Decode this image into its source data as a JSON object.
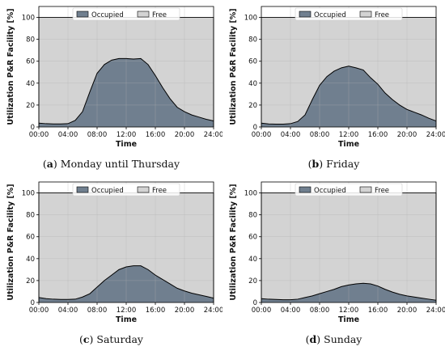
{
  "chart_data": [
    {
      "type": "area",
      "caption_letter": "a",
      "caption_text": "Monday until Thursday",
      "xlabel": "Time",
      "ylabel": "Utilization P&R Facility [%]",
      "xticks": [
        "00:00",
        "04:00",
        "08:00",
        "12:00",
        "16:00",
        "20:00",
        "24:00"
      ],
      "xlim": [
        0,
        24
      ],
      "ylim": [
        0,
        110
      ],
      "yticks": [
        0,
        20,
        40,
        60,
        80,
        100
      ],
      "legend": [
        "Occupied",
        "Free"
      ],
      "legend_position": "top-center",
      "grid": true,
      "series": [
        {
          "name": "Occupied",
          "x": [
            0,
            1,
            2,
            3,
            4,
            5,
            6,
            7,
            8,
            9,
            10,
            11,
            12,
            13,
            14,
            15,
            16,
            17,
            18,
            19,
            20,
            21,
            22,
            23,
            24
          ],
          "values": [
            3.5,
            3,
            2.8,
            2.8,
            3,
            6,
            14,
            32,
            49,
            57,
            61,
            62.5,
            62.5,
            62,
            62.5,
            57,
            47,
            36,
            26,
            18,
            14,
            11,
            9,
            7,
            5.5
          ]
        },
        {
          "name": "Free",
          "capacity": 100
        }
      ]
    },
    {
      "type": "area",
      "caption_letter": "b",
      "caption_text": "Friday",
      "xlabel": "Time",
      "ylabel": "Utilization P&R Facility [%]",
      "xticks": [
        "00:00",
        "04:00",
        "08:00",
        "12:00",
        "16:00",
        "20:00",
        "24:00"
      ],
      "xlim": [
        0,
        24
      ],
      "ylim": [
        0,
        110
      ],
      "yticks": [
        0,
        20,
        40,
        60,
        80,
        100
      ],
      "legend": [
        "Occupied",
        "Free"
      ],
      "legend_position": "top-center",
      "grid": true,
      "series": [
        {
          "name": "Occupied",
          "x": [
            0,
            1,
            2,
            3,
            4,
            5,
            6,
            7,
            8,
            9,
            10,
            11,
            12,
            13,
            14,
            15,
            16,
            17,
            18,
            19,
            20,
            21,
            22,
            23,
            24
          ],
          "values": [
            3.5,
            2.8,
            2.6,
            2.6,
            3,
            5,
            11,
            25,
            38,
            46,
            51,
            54,
            55.5,
            54,
            52,
            45,
            39,
            31,
            25,
            20,
            16,
            13.5,
            11,
            8,
            5.5
          ]
        },
        {
          "name": "Free",
          "capacity": 100
        }
      ]
    },
    {
      "type": "area",
      "caption_letter": "c",
      "caption_text": "Saturday",
      "xlabel": "Time",
      "ylabel": "Utilization P&R Facility [%]",
      "xticks": [
        "00:00",
        "04:00",
        "08:00",
        "12:00",
        "16:00",
        "20:00",
        "24:00"
      ],
      "xlim": [
        0,
        24
      ],
      "ylim": [
        0,
        110
      ],
      "yticks": [
        0,
        20,
        40,
        60,
        80,
        100
      ],
      "legend": [
        "Occupied",
        "Free"
      ],
      "legend_position": "top-center",
      "grid": true,
      "series": [
        {
          "name": "Occupied",
          "x": [
            0,
            1,
            2,
            3,
            4,
            5,
            6,
            7,
            8,
            9,
            10,
            11,
            12,
            13,
            14,
            15,
            16,
            17,
            18,
            19,
            20,
            21,
            22,
            23,
            24
          ],
          "values": [
            4.5,
            3.5,
            3,
            2.8,
            2.8,
            3,
            5,
            8,
            14,
            20,
            25,
            30,
            32.5,
            33.5,
            33.5,
            30,
            25,
            21,
            17,
            13,
            10.5,
            8.5,
            7,
            5.5,
            4
          ]
        },
        {
          "name": "Free",
          "capacity": 100
        }
      ]
    },
    {
      "type": "area",
      "caption_letter": "d",
      "caption_text": "Sunday",
      "xlabel": "Time",
      "ylabel": "Utilization P&R Facility [%]",
      "xticks": [
        "00:00",
        "04:00",
        "08:00",
        "12:00",
        "16:00",
        "20:00",
        "24:00"
      ],
      "xlim": [
        0,
        24
      ],
      "ylim": [
        0,
        110
      ],
      "yticks": [
        0,
        20,
        40,
        60,
        80,
        100
      ],
      "legend": [
        "Occupied",
        "Free"
      ],
      "legend_position": "top-center",
      "grid": true,
      "series": [
        {
          "name": "Occupied",
          "x": [
            0,
            1,
            2,
            3,
            4,
            5,
            6,
            7,
            8,
            9,
            10,
            11,
            12,
            13,
            14,
            15,
            16,
            17,
            18,
            19,
            20,
            21,
            22,
            23,
            24
          ],
          "values": [
            3.5,
            3,
            2.8,
            2.5,
            2.5,
            3,
            4.5,
            6,
            8,
            10,
            12,
            14.5,
            16,
            17,
            17.5,
            17,
            15,
            12,
            9.5,
            7.5,
            6,
            5,
            4,
            3,
            2
          ]
        },
        {
          "name": "Free",
          "capacity": 100
        }
      ]
    }
  ],
  "colors": {
    "occupied": "#707f8f",
    "free": "#d3d3d3",
    "grid": "#ffffff",
    "line": "#000000"
  }
}
